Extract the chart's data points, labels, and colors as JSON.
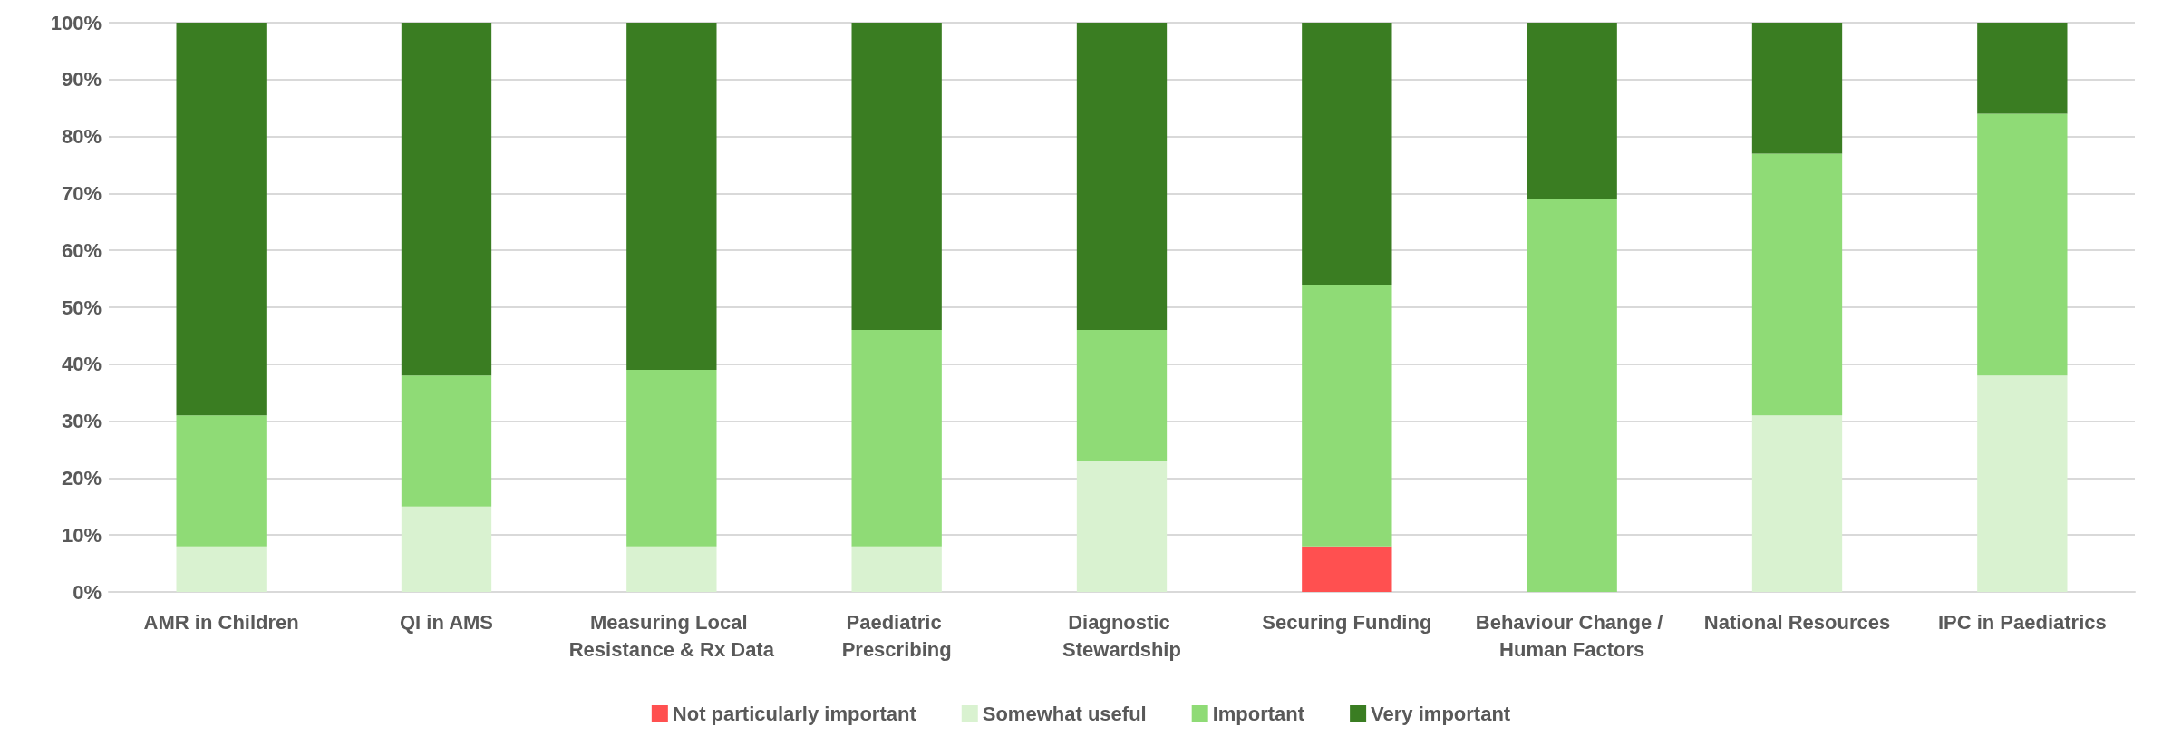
{
  "chart_data": {
    "type": "bar",
    "stacked": true,
    "categories": [
      "AMR in Children",
      "QI in AMS",
      "Measuring Local Resistance & Rx Data",
      "Paediatric Prescribing",
      "Diagnostic Stewardship",
      "Securing Funding",
      "Behaviour Change / Human Factors",
      "National Resources",
      "IPC in Paediatrics"
    ],
    "series": [
      {
        "name": "Not particularly important",
        "color": "#ff5050",
        "values": [
          0,
          0,
          0,
          0,
          0,
          8,
          0,
          0,
          0
        ]
      },
      {
        "name": "Somewhat useful",
        "color": "#d9f2d0",
        "values": [
          8,
          15,
          8,
          8,
          23,
          0,
          0,
          31,
          38
        ]
      },
      {
        "name": "Important",
        "color": "#8fdb76",
        "values": [
          23,
          23,
          31,
          38,
          23,
          46,
          69,
          46,
          46
        ]
      },
      {
        "name": "Very important",
        "color": "#3a7d22",
        "values": [
          69,
          62,
          61,
          54,
          54,
          46,
          31,
          23,
          16
        ]
      }
    ],
    "ylim": [
      0,
      100
    ],
    "yticks": [
      {
        "value": 0,
        "label": "0%"
      },
      {
        "value": 10,
        "label": "10%"
      },
      {
        "value": 20,
        "label": "20%"
      },
      {
        "value": 30,
        "label": "30%"
      },
      {
        "value": 40,
        "label": "40%"
      },
      {
        "value": 50,
        "label": "50%"
      },
      {
        "value": 60,
        "label": "60%"
      },
      {
        "value": 70,
        "label": "70%"
      },
      {
        "value": 80,
        "label": "80%"
      },
      {
        "value": 90,
        "label": "90%"
      },
      {
        "value": 100,
        "label": "100%"
      }
    ],
    "grid": "y",
    "legend": "bottom"
  }
}
